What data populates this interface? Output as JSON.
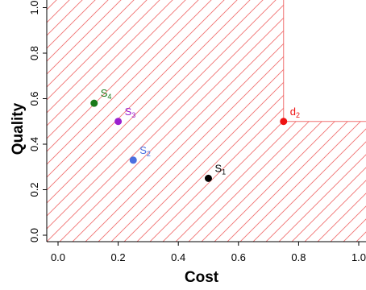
{
  "chart_data": {
    "type": "scatter",
    "xlabel": "Cost",
    "ylabel": "Quality",
    "xlim": [
      -0.04,
      1.0
    ],
    "ylim": [
      -0.03,
      1.0
    ],
    "x_ticks": [
      0.0,
      0.2,
      0.4,
      0.6,
      0.8,
      1.0
    ],
    "x_tick_labels": [
      "0.0",
      "0.2",
      "0.4",
      "0.6",
      "0.8",
      "1.0"
    ],
    "y_ticks": [
      0.0,
      0.2,
      0.4,
      0.6,
      0.8,
      1.0
    ],
    "y_tick_labels": [
      "0.0",
      "0.2",
      "0.4",
      "0.6",
      "0.8",
      "1.0"
    ],
    "grid": false,
    "dominated_region": {
      "description_color": "#f07070",
      "corner": [
        0.75,
        0.5
      ]
    },
    "points": [
      {
        "name": "S",
        "sub": "1",
        "x": 0.5,
        "y": 0.25,
        "color": "#000000"
      },
      {
        "name": "S",
        "sub": "2",
        "x": 0.25,
        "y": 0.33,
        "color": "#4a6fe0"
      },
      {
        "name": "S",
        "sub": "3",
        "x": 0.2,
        "y": 0.5,
        "color": "#9b1fd0"
      },
      {
        "name": "S",
        "sub": "4",
        "x": 0.12,
        "y": 0.58,
        "color": "#1a7a1a"
      },
      {
        "name": "d",
        "sub": "2",
        "x": 0.75,
        "y": 0.5,
        "color": "#ee1111"
      }
    ]
  }
}
